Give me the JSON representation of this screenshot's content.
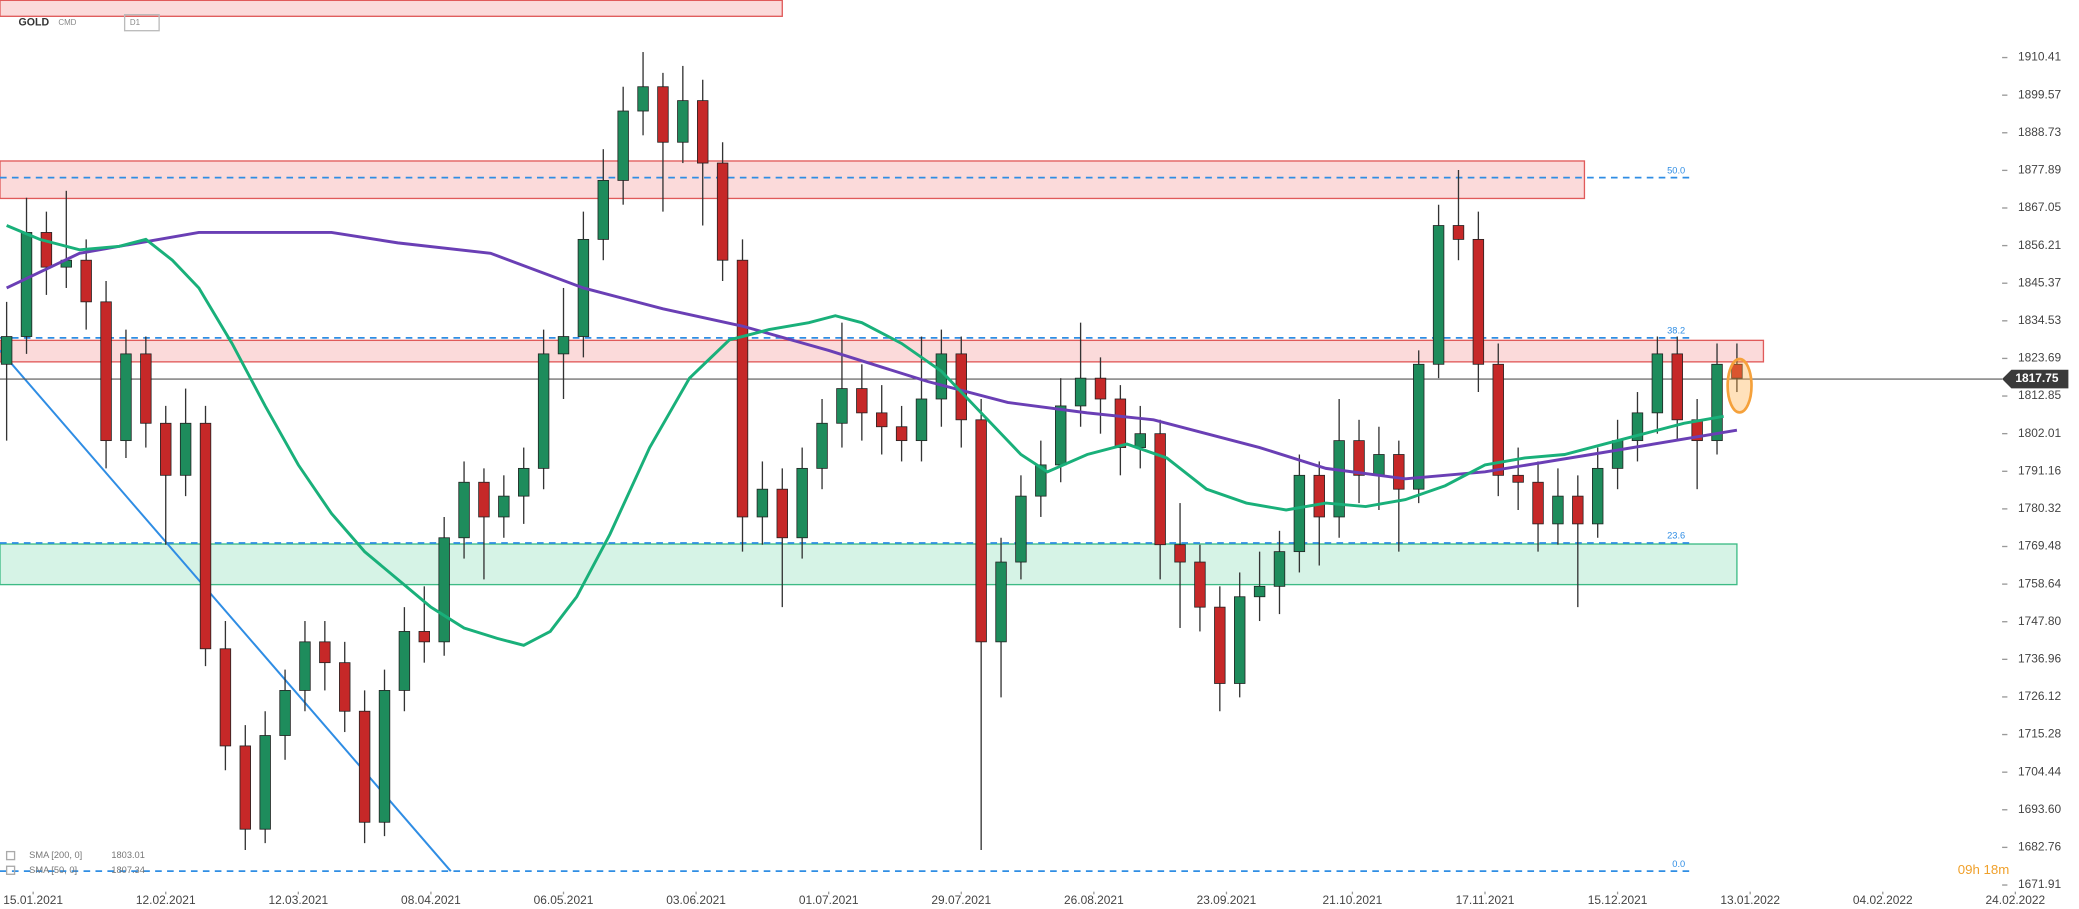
{
  "chart_data": {
    "type": "candlestick",
    "symbol": "GOLD",
    "market": "CMD",
    "interval": "D1",
    "xlim": [
      0,
      310
    ],
    "ylim": [
      1670,
      1927
    ],
    "yticks": [
      1910.41,
      1899.57,
      1888.73,
      1877.89,
      1867.05,
      1856.21,
      1845.37,
      1834.53,
      1823.69,
      1812.85,
      1802.01,
      1791.16,
      1780.32,
      1769.48,
      1758.64,
      {
        "value": 1747.8,
        "label": "1747.80"
      },
      1736.96,
      1726.12,
      1715.28,
      1704.44,
      {
        "value": 1693.6,
        "label": "1693.60"
      },
      1682.76,
      1671.91
    ],
    "xticks": [
      {
        "value": 5,
        "label": "15.01.2021"
      },
      {
        "value": 25,
        "label": "12.02.2021"
      },
      {
        "value": 45,
        "label": "12.03.2021"
      },
      {
        "value": 65,
        "label": "08.04.2021"
      },
      {
        "value": 85,
        "label": "06.05.2021"
      },
      {
        "value": 105,
        "label": "03.06.2021"
      },
      {
        "value": 125,
        "label": "01.07.2021"
      },
      {
        "value": 145,
        "label": "29.07.2021"
      },
      {
        "value": 165,
        "label": "26.08.2021"
      },
      {
        "value": 185,
        "label": "23.09.2021"
      },
      {
        "value": 204,
        "label": "21.10.2021"
      },
      {
        "value": 224,
        "label": "17.11.2021"
      },
      {
        "value": 244,
        "label": "15.12.2021"
      },
      {
        "value": 264,
        "label": "13.01.2022"
      },
      {
        "value": 284,
        "label": "04.02.2022"
      },
      {
        "value": 304,
        "label": "24.02.2022"
      }
    ],
    "up_color": "#1e8c5c",
    "down_color": "#c62828",
    "x": [
      1,
      4,
      7,
      10,
      13,
      16,
      19,
      22,
      25,
      28,
      31,
      34,
      37,
      40,
      43,
      46,
      49,
      52,
      55,
      58,
      61,
      64,
      67,
      70,
      73,
      76,
      79,
      82,
      85,
      88,
      91,
      94,
      97,
      100,
      103,
      106,
      109,
      112,
      115,
      118,
      121,
      124,
      127,
      130,
      133,
      136,
      139,
      142,
      145,
      148,
      151,
      154,
      157,
      160,
      163,
      166,
      169,
      172,
      175,
      178,
      181,
      184,
      187,
      190,
      193,
      196,
      199,
      202,
      205,
      208,
      211,
      214,
      217,
      220,
      223,
      226,
      229,
      232,
      235,
      238,
      241,
      244,
      247,
      250,
      253,
      256,
      259,
      262
    ],
    "candles": [
      [
        1822,
        1840,
        1800,
        1830
      ],
      [
        1830,
        1870,
        1825,
        1860
      ],
      [
        1860,
        1866,
        1842,
        1850
      ],
      [
        1850,
        1872,
        1844,
        1852
      ],
      [
        1852,
        1858,
        1832,
        1840
      ],
      [
        1840,
        1846,
        1792,
        1800
      ],
      [
        1800,
        1832,
        1795,
        1825
      ],
      [
        1825,
        1830,
        1798,
        1805
      ],
      [
        1805,
        1810,
        1770,
        1790
      ],
      [
        1790,
        1815,
        1784,
        1805
      ],
      [
        1805,
        1810,
        1735,
        1740
      ],
      [
        1740,
        1748,
        1705,
        1712
      ],
      [
        1712,
        1718,
        1682,
        1688
      ],
      [
        1688,
        1722,
        1684,
        1715
      ],
      [
        1715,
        1734,
        1708,
        1728
      ],
      [
        1728,
        1748,
        1722,
        1742
      ],
      [
        1742,
        1748,
        1728,
        1736
      ],
      [
        1736,
        1742,
        1716,
        1722
      ],
      [
        1722,
        1728,
        1684,
        1690
      ],
      [
        1690,
        1734,
        1686,
        1728
      ],
      [
        1728,
        1752,
        1722,
        1745
      ],
      [
        1745,
        1758,
        1736,
        1742
      ],
      [
        1742,
        1778,
        1738,
        1772
      ],
      [
        1772,
        1794,
        1766,
        1788
      ],
      [
        1788,
        1792,
        1760,
        1778
      ],
      [
        1778,
        1790,
        1772,
        1784
      ],
      [
        1784,
        1798,
        1776,
        1792
      ],
      [
        1792,
        1832,
        1786,
        1825
      ],
      [
        1825,
        1844,
        1812,
        1830
      ],
      [
        1830,
        1866,
        1824,
        1858
      ],
      [
        1858,
        1884,
        1852,
        1875
      ],
      [
        1875,
        1902,
        1868,
        1895
      ],
      [
        1895,
        1912,
        1888,
        1902
      ],
      [
        1902,
        1906,
        1866,
        1886
      ],
      [
        1886,
        1908,
        1880,
        1898
      ],
      [
        1898,
        1904,
        1862,
        1880
      ],
      [
        1880,
        1886,
        1846,
        1852
      ],
      [
        1852,
        1858,
        1768,
        1778
      ],
      [
        1778,
        1794,
        1770,
        1786
      ],
      [
        1786,
        1792,
        1752,
        1772
      ],
      [
        1772,
        1798,
        1766,
        1792
      ],
      [
        1792,
        1812,
        1786,
        1805
      ],
      [
        1805,
        1834,
        1798,
        1815
      ],
      [
        1815,
        1822,
        1800,
        1808
      ],
      [
        1808,
        1816,
        1796,
        1804
      ],
      [
        1804,
        1810,
        1794,
        1800
      ],
      [
        1800,
        1830,
        1794,
        1812
      ],
      [
        1812,
        1832,
        1804,
        1825
      ],
      [
        1825,
        1830,
        1798,
        1806
      ],
      [
        1806,
        1812,
        1682,
        1742
      ],
      [
        1742,
        1772,
        1726,
        1765
      ],
      [
        1765,
        1790,
        1760,
        1784
      ],
      [
        1784,
        1800,
        1778,
        1793
      ],
      [
        1793,
        1818,
        1788,
        1810
      ],
      [
        1810,
        1834,
        1804,
        1818
      ],
      [
        1818,
        1824,
        1802,
        1812
      ],
      [
        1812,
        1816,
        1790,
        1798
      ],
      [
        1798,
        1810,
        1792,
        1802
      ],
      [
        1802,
        1806,
        1760,
        1770
      ],
      [
        1770,
        1782,
        1746,
        1765
      ],
      [
        1765,
        1770,
        1745,
        1752
      ],
      [
        1752,
        1758,
        1722,
        1730
      ],
      [
        1730,
        1762,
        1726,
        1755
      ],
      [
        1755,
        1768,
        1748,
        1758
      ],
      [
        1758,
        1774,
        1750,
        1768
      ],
      [
        1768,
        1796,
        1762,
        1790
      ],
      [
        1790,
        1794,
        1764,
        1778
      ],
      [
        1778,
        1812,
        1772,
        1800
      ],
      [
        1800,
        1806,
        1782,
        1790
      ],
      [
        1790,
        1804,
        1780,
        1796
      ],
      [
        1796,
        1800,
        1768,
        1786
      ],
      [
        1786,
        1826,
        1782,
        1822
      ],
      [
        1822,
        1868,
        1818,
        1862
      ],
      [
        1862,
        1878,
        1852,
        1858
      ],
      [
        1858,
        1866,
        1814,
        1822
      ],
      [
        1822,
        1828,
        1784,
        1790
      ],
      [
        1790,
        1798,
        1780,
        1788
      ],
      [
        1788,
        1794,
        1768,
        1776
      ],
      [
        1776,
        1792,
        1770,
        1784
      ],
      [
        1784,
        1790,
        1752,
        1776
      ],
      [
        1776,
        1798,
        1772,
        1792
      ],
      [
        1792,
        1806,
        1786,
        1800
      ],
      [
        1800,
        1814,
        1794,
        1808
      ],
      [
        1808,
        1830,
        1802,
        1825
      ],
      [
        1825,
        1830,
        1800,
        1806
      ],
      [
        1806,
        1812,
        1786,
        1800
      ],
      [
        1800,
        1828,
        1796,
        1822
      ],
      [
        1822,
        1828,
        1814,
        1818
      ]
    ],
    "series": [
      {
        "name": "SMA [200, 0]",
        "last_value": 1803.01,
        "color": "#6a3fb5",
        "x": [
          1,
          12,
          30,
          50,
          60,
          74,
          88,
          100,
          112,
          125,
          140,
          152,
          164,
          174,
          190,
          200,
          212,
          224,
          240,
          262
        ],
        "values": [
          1844,
          1854,
          1860,
          1860,
          1857,
          1854,
          1844,
          1838,
          1833,
          1826,
          1817,
          1811,
          1808,
          1806,
          1798,
          1792,
          1789,
          1791,
          1796,
          1803
        ]
      },
      {
        "name": "SMA [50, 0]",
        "last_value": 1807.34,
        "color": "#19b07a",
        "x": [
          1,
          6,
          12,
          18,
          22,
          26,
          30,
          35,
          40,
          45,
          50,
          55,
          60,
          65,
          70,
          75,
          79,
          83,
          87,
          92,
          98,
          104,
          110,
          116,
          122,
          126,
          130,
          136,
          142,
          148,
          154,
          158,
          164,
          170,
          176,
          182,
          188,
          194,
          200,
          206,
          212,
          218,
          224,
          230,
          236,
          242,
          248,
          254,
          260
        ],
        "values": [
          1862,
          1858,
          1855,
          1856,
          1858,
          1852,
          1844,
          1828,
          1810,
          1793,
          1779,
          1768,
          1760,
          1752,
          1746,
          1743,
          1741,
          1745,
          1755,
          1773,
          1798,
          1818,
          1829,
          1832,
          1834,
          1836,
          1834,
          1828,
          1820,
          1808,
          1796,
          1791,
          1796,
          1799,
          1795,
          1786,
          1782,
          1780,
          1782,
          1781,
          1783,
          1787,
          1793,
          1795,
          1796,
          1799,
          1802,
          1805,
          1807
        ]
      }
    ],
    "zones": [
      {
        "range": [
          1922.3,
          1926.9
        ],
        "x_end": 118,
        "fill": "#fbdada",
        "stroke": "#e05a5a"
      },
      {
        "range": [
          1869.8,
          1880.6
        ],
        "x_end": 239,
        "fill": "#fbdada",
        "stroke": "#e05a5a"
      },
      {
        "range": [
          1822.7,
          1828.9
        ],
        "x_end": 266,
        "fill": "#fbdada",
        "stroke": "#e05a5a"
      },
      {
        "range": [
          1758.5,
          1770.2
        ],
        "x_end": 262,
        "fill": "#d6f3e6",
        "stroke": "#3dbb85"
      }
    ],
    "fib_levels": [
      {
        "value": 1875.8,
        "label": "50.0"
      },
      {
        "value": 1829.6,
        "label": "38.2"
      },
      {
        "value": 1770.5,
        "label": "23.6"
      },
      {
        "value": 1675.9,
        "label": "0.0"
      }
    ],
    "fib_x_end": 255,
    "fib_color": "#2f8de4",
    "trendline": {
      "x": [
        0,
        68
      ],
      "values": [
        1826,
        1675.9
      ],
      "color": "#2f8de4"
    },
    "last_price": 1817.75,
    "timer": "09h 18m"
  }
}
